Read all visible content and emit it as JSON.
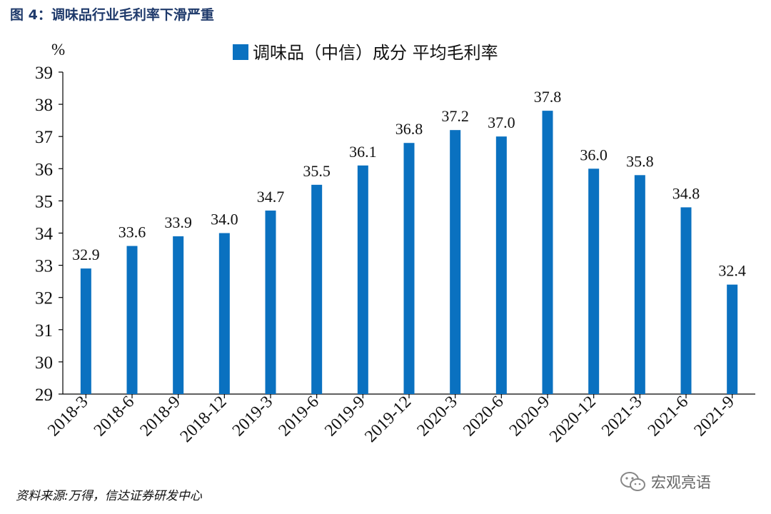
{
  "figure": {
    "title": "图 4：调味品行业毛利率下滑严重",
    "source": "资料来源:万得，信达证券研发中心",
    "watermark": "宏观亮语"
  },
  "colors": {
    "bar": "#0a71c0",
    "title": "#1f3a6b",
    "axis": "#000000"
  },
  "chart_data": {
    "type": "bar",
    "unit_label": "%",
    "legend": "调味品（中信）成分 平均毛利率",
    "legend_position": "top-center",
    "categories": [
      "2018-3",
      "2018-6",
      "2018-9",
      "2018-12",
      "2019-3",
      "2019-6",
      "2019-9",
      "2019-12",
      "2020-3",
      "2020-6",
      "2020-9",
      "2020-12",
      "2021-3",
      "2021-6",
      "2021-9"
    ],
    "series": [
      {
        "name": "调味品（中信）成分 平均毛利率",
        "values": [
          32.9,
          33.6,
          33.9,
          34.0,
          34.7,
          35.5,
          36.1,
          36.8,
          37.2,
          37.0,
          37.8,
          36.0,
          35.8,
          34.8,
          32.4
        ],
        "labels": [
          "32.9",
          "33.6",
          "33.9",
          "34.0",
          "34.7",
          "35.5",
          "36.1",
          "36.8",
          "37.2",
          "37.0",
          "37.8",
          "36.0",
          "35.8",
          "34.8",
          "32.4"
        ]
      }
    ],
    "ylim": [
      29,
      39
    ],
    "yticks": [
      29,
      30,
      31,
      32,
      33,
      34,
      35,
      36,
      37,
      38,
      39
    ],
    "grid": false
  }
}
